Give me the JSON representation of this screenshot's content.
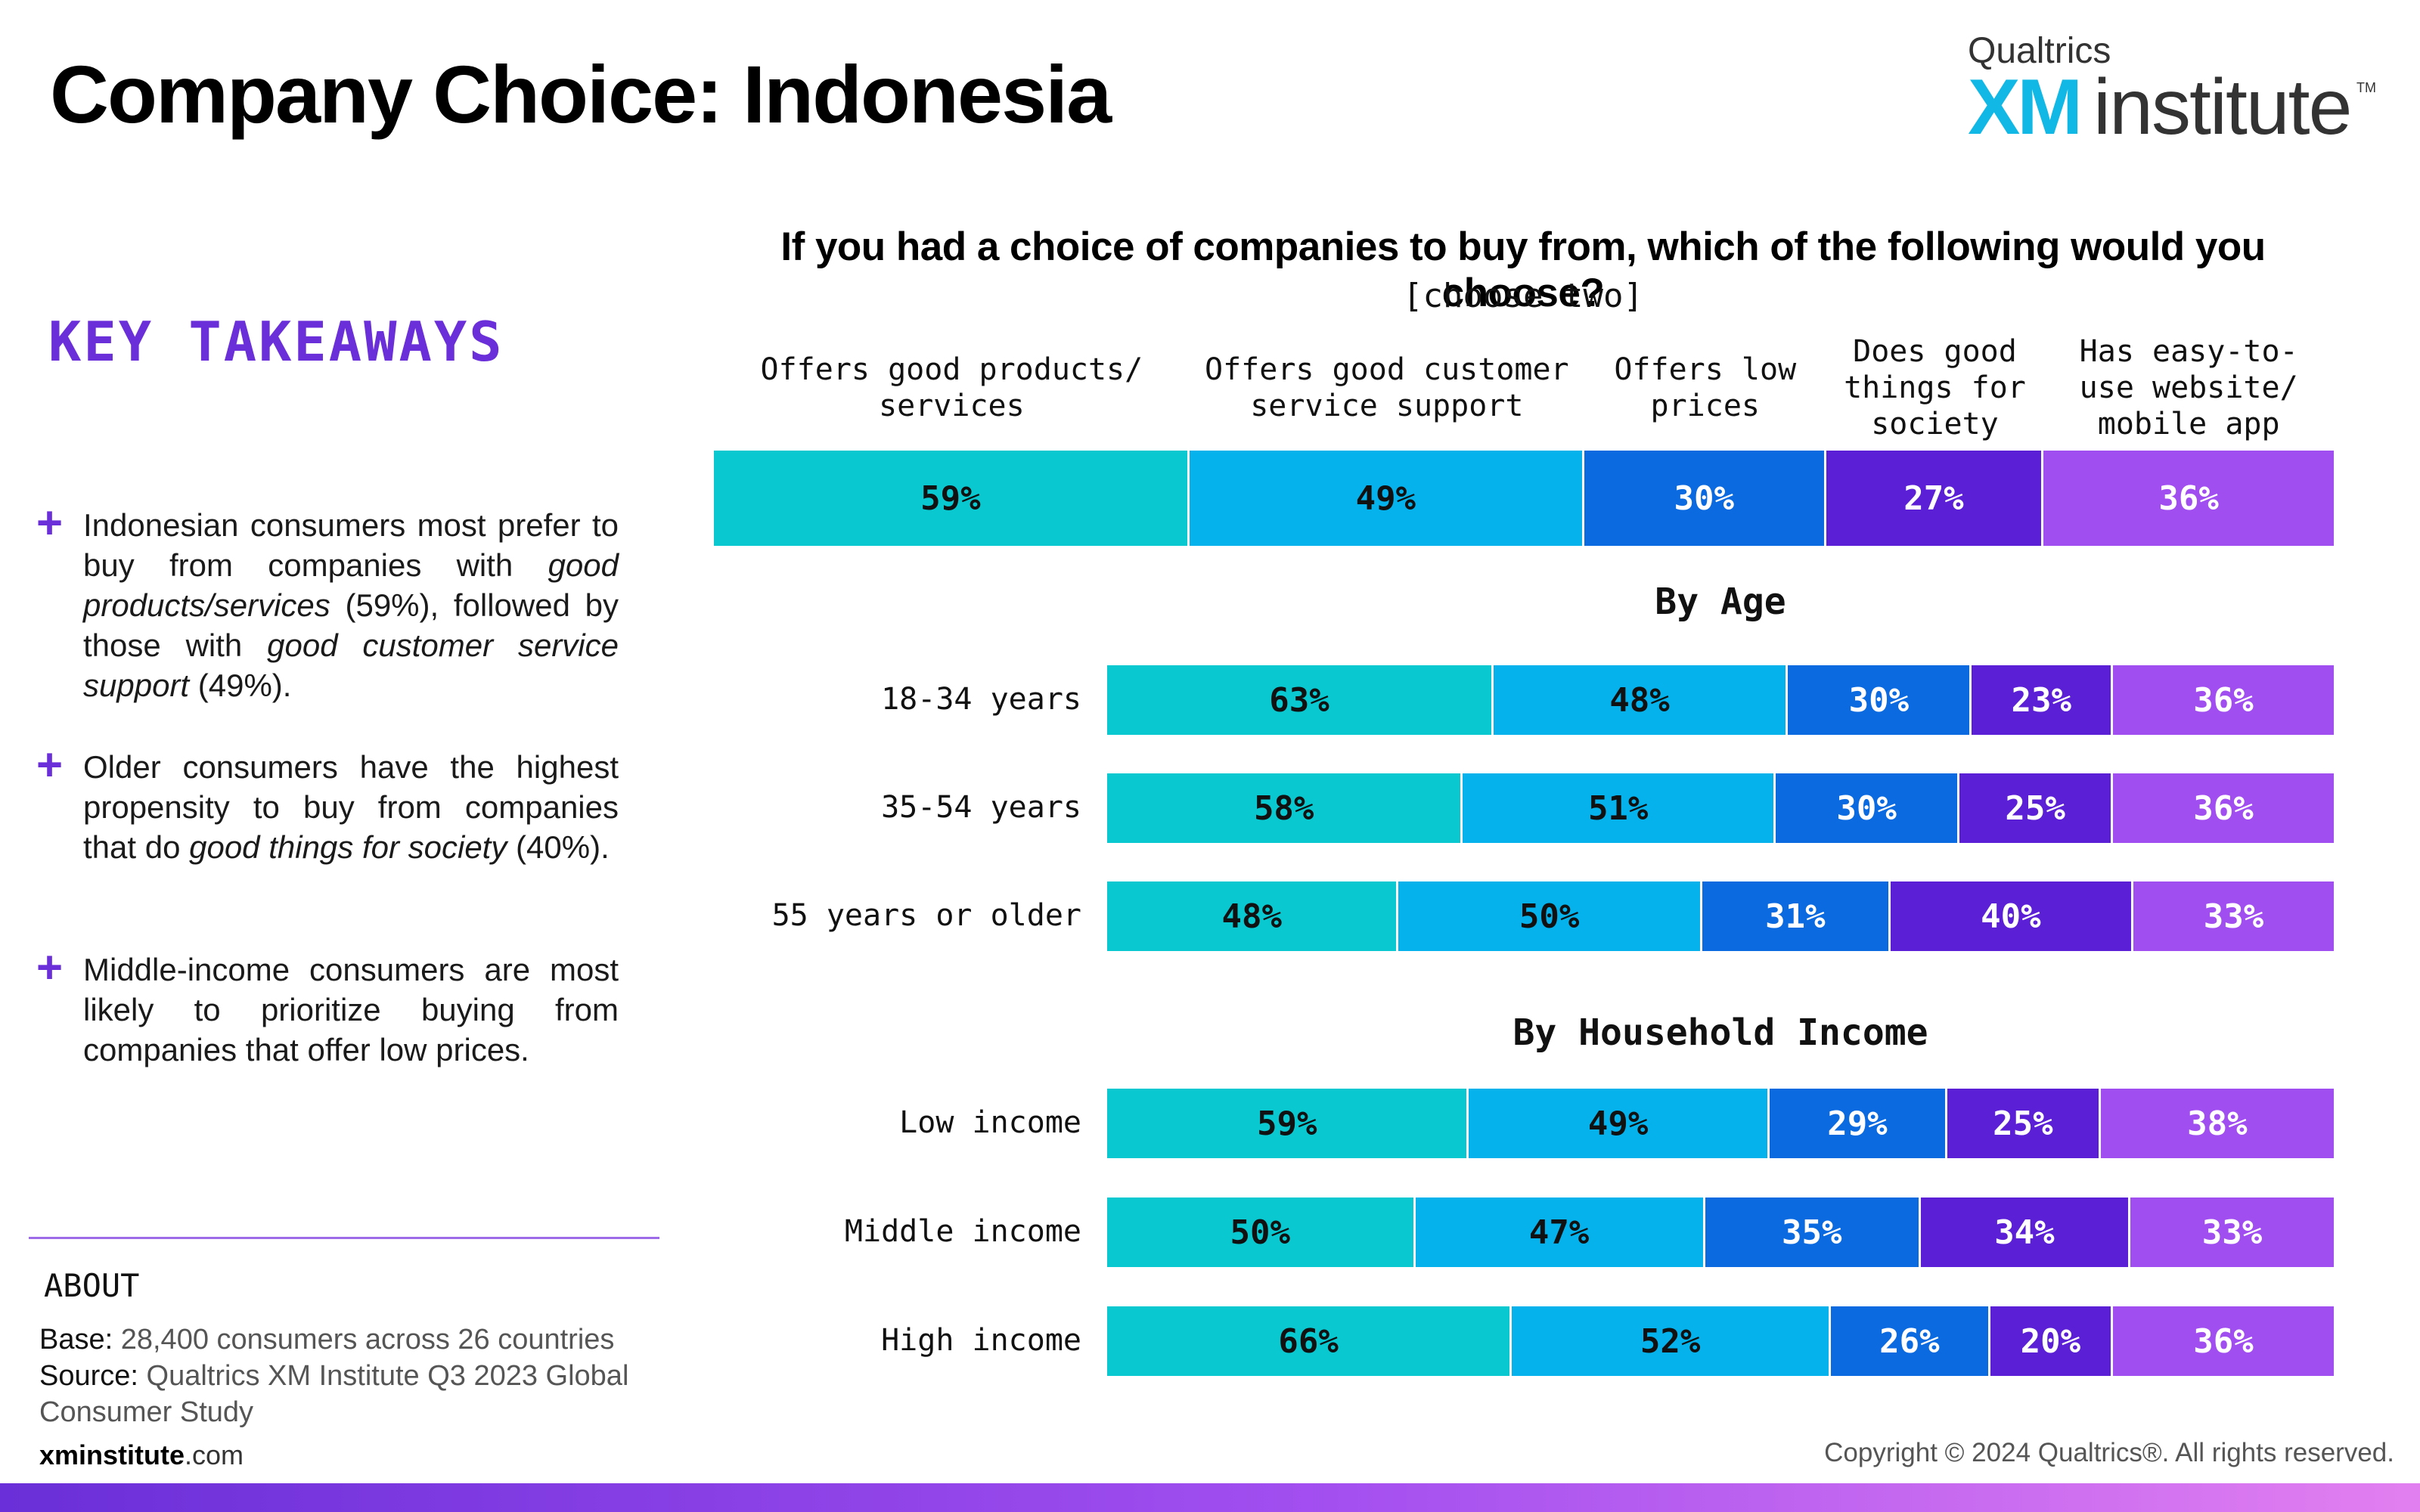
{
  "header": {
    "title": "Company Choice: Indonesia",
    "logo_brand": "Qualtrics",
    "logo_xm": "XM",
    "logo_institute": "institute",
    "logo_tm": "TM"
  },
  "sidebar": {
    "title": "KEY TAKEAWAYS",
    "plus": "+",
    "takeaways": [
      {
        "parts": [
          {
            "t": "Indonesian consumers most prefer to buy from companies with "
          },
          {
            "t": "good products/services",
            "i": true
          },
          {
            "t": " (59%), followed by those with "
          },
          {
            "t": "good customer service support",
            "i": true
          },
          {
            "t": " (49%)."
          }
        ]
      },
      {
        "parts": [
          {
            "t": "Older consumers have the highest propensity to buy from companies that do "
          },
          {
            "t": "good things for society",
            "i": true
          },
          {
            "t": " (40%)."
          }
        ]
      },
      {
        "parts": [
          {
            "t": "Middle-income consumers are most likely to prioritize buying from companies that offer low prices."
          }
        ]
      }
    ],
    "about": {
      "title": "ABOUT",
      "base_key": "Base:",
      "base_value": " 28,400 consumers across 26 countries",
      "source_key": "Source:",
      "source_value": " Qualtrics XM Institute Q3 2023 Global Consumer Study"
    }
  },
  "footer": {
    "site_bold": "xminstitute",
    "site_rest": ".com",
    "copyright": "Copyright © 2024 Qualtrics®. All rights reserved."
  },
  "colors": {
    "series": [
      "#0ac8d0",
      "#05b2eb",
      "#0b6ae0",
      "#5b1fd6",
      "#a14ef0"
    ],
    "label_text": [
      "#111111",
      "#111111",
      "#ffffff",
      "#ffffff",
      "#ffffff"
    ],
    "accent": "#6a2fd8"
  },
  "chart_data": {
    "type": "bar",
    "stacked": true,
    "orientation": "horizontal",
    "title": "If you had a choice of companies to buy from, which of the following would you choose?",
    "subtitle": "[choose two]",
    "categories": [
      "Offers good products/ services",
      "Offers good customer service support",
      "Offers low prices",
      "Does good things for society",
      "Has easy-to- use website/ mobile app"
    ],
    "overall": {
      "label": "",
      "values": [
        59,
        49,
        30,
        27,
        36
      ]
    },
    "groups": [
      {
        "title": "By Age",
        "rows": [
          {
            "label": "18-34 years",
            "values": [
              63,
              48,
              30,
              23,
              36
            ]
          },
          {
            "label": "35-54 years",
            "values": [
              58,
              51,
              30,
              25,
              36
            ]
          },
          {
            "label": "55 years or older",
            "values": [
              48,
              50,
              31,
              40,
              33
            ]
          }
        ]
      },
      {
        "title": "By Household Income",
        "rows": [
          {
            "label": "Low income",
            "values": [
              59,
              49,
              29,
              25,
              38
            ]
          },
          {
            "label": "Middle income",
            "values": [
              50,
              47,
              35,
              34,
              33
            ]
          },
          {
            "label": "High income",
            "values": [
              66,
              52,
              26,
              20,
              36
            ]
          }
        ]
      }
    ],
    "value_suffix": "%"
  }
}
